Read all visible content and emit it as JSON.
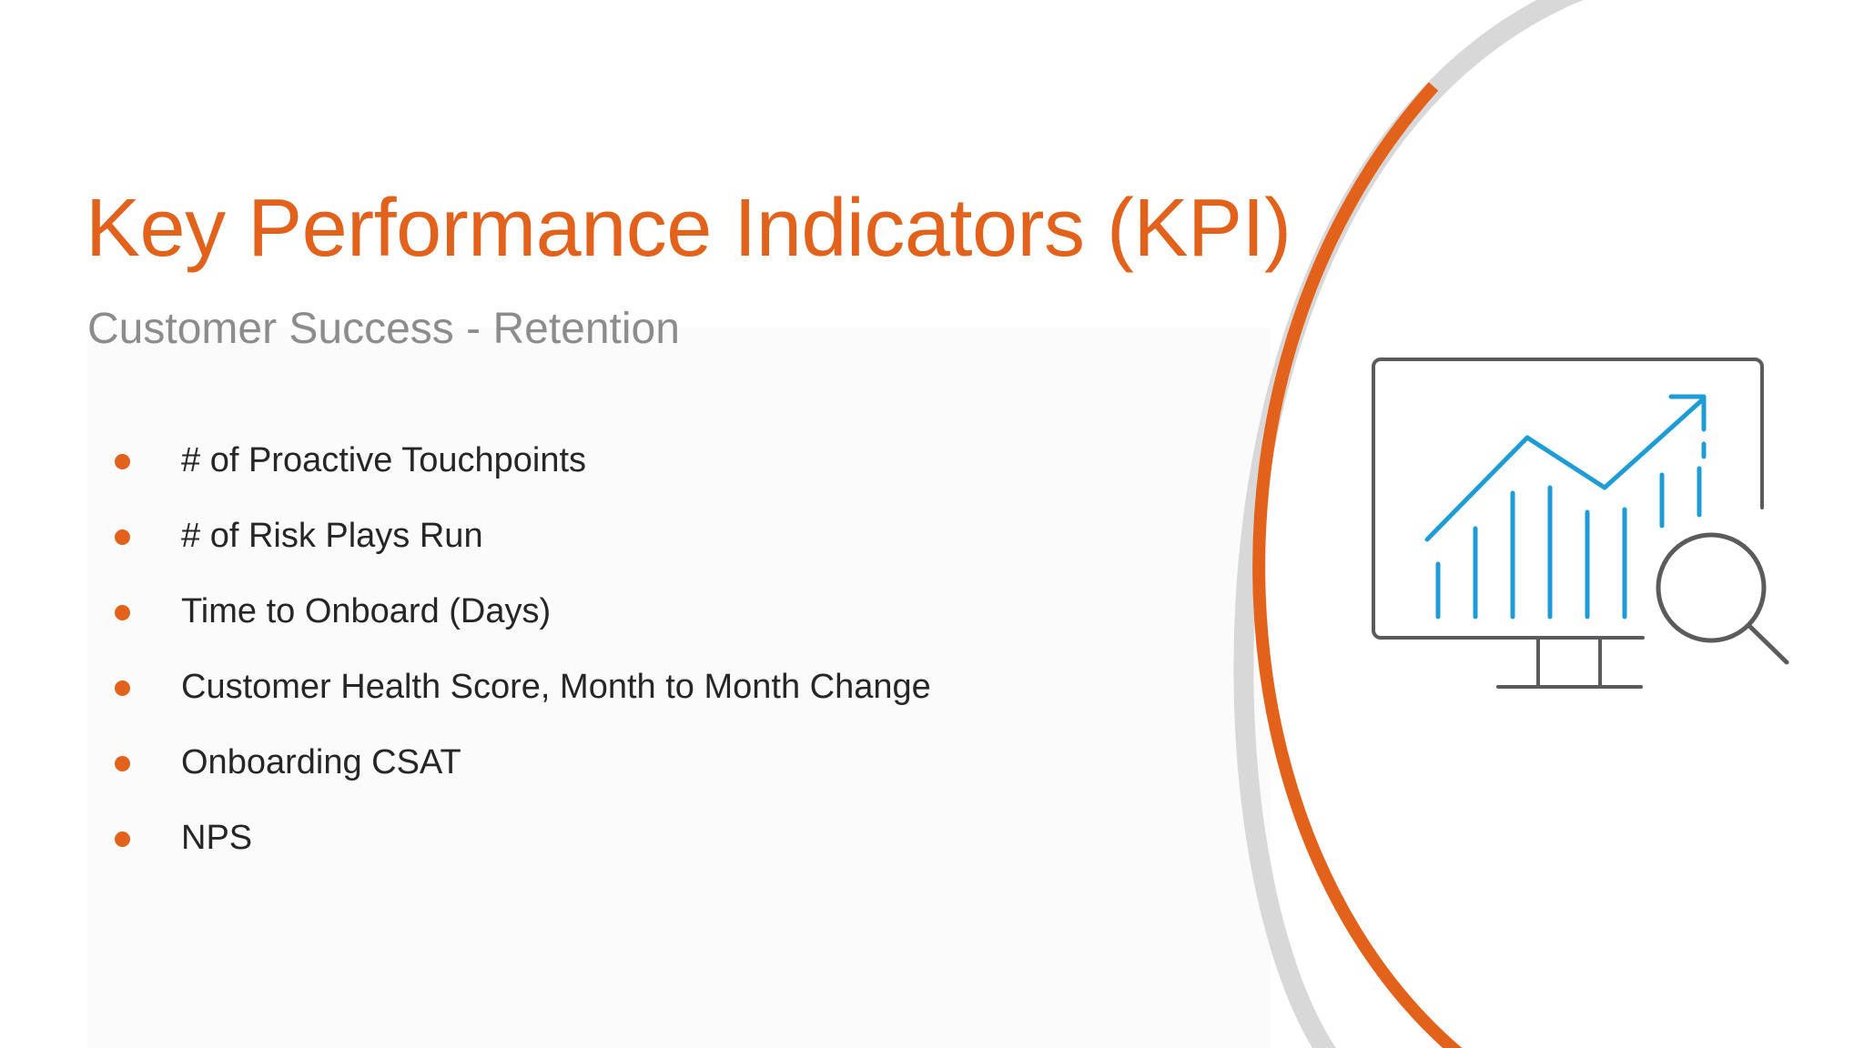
{
  "slide": {
    "title": "Key Performance Indicators (KPI)",
    "subtitle": "Customer Success - Retention",
    "kpis": [
      {
        "label": "# of Proactive Touchpoints"
      },
      {
        "label": "# of Risk Plays Run"
      },
      {
        "label": "Time to Onboard (Days)"
      },
      {
        "label": "Customer Health Score, Month to Month Change"
      },
      {
        "label": "Onboarding CSAT"
      },
      {
        "label": "NPS"
      }
    ],
    "illustration": {
      "icon": "monitor-analytics-magnifier-icon"
    }
  },
  "colors": {
    "accent": "#e2611b",
    "subtitle": "#8c8c8c",
    "body_text": "#262626",
    "icon_blue": "#1e9cd6",
    "icon_gray": "#5b5b5b",
    "arc_gray": "#d8d8d8"
  }
}
